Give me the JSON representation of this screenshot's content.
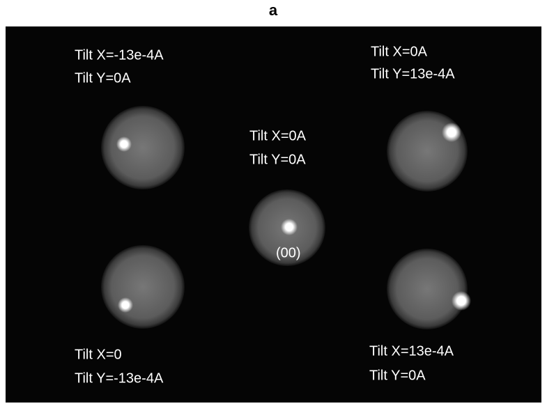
{
  "panel_label": "a",
  "patterns": [
    {
      "tilt_x": "Tilt X=-13e-4A",
      "tilt_y": "Tilt Y=0A"
    },
    {
      "tilt_x": "Tilt X=0A",
      "tilt_y": "Tilt Y=13e-4A"
    },
    {
      "tilt_x": "Tilt X=0A",
      "tilt_y": "Tilt Y=0A",
      "spot_label": "(00)"
    },
    {
      "tilt_x": "Tilt X=0",
      "tilt_y": "Tilt Y=-13e-4A"
    },
    {
      "tilt_x": "Tilt X=13e-4A",
      "tilt_y": "Tilt Y=0A"
    }
  ]
}
